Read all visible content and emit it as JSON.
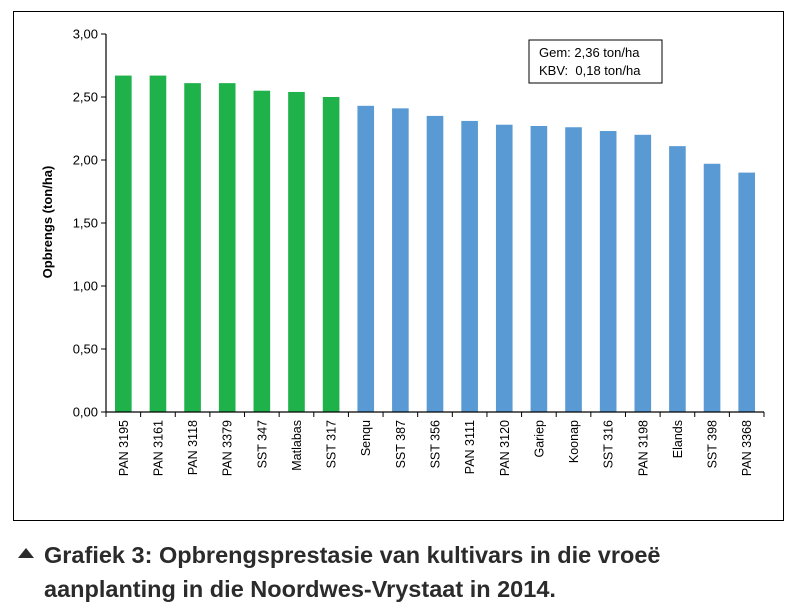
{
  "caption": {
    "line1": "Grafiek 3: Opbrengsprestasie van kultivars in die vroeë",
    "line2": "aanplanting in die Noordwes-Vrystaat in 2014."
  },
  "stats_box": {
    "line1": "Gem: 2,36 ton/ha",
    "line2": "KBV:  0,18 ton/ha"
  },
  "colors": {
    "highlight_bar": "#1fb24a",
    "regular_bar": "#5a9ad4",
    "axis": "#000000"
  },
  "chart_data": {
    "type": "bar",
    "ylabel": "Opbrengs (ton/ha)",
    "xlabel": "",
    "ylim": [
      0,
      3.0
    ],
    "yticks": [
      "0,00",
      "0,50",
      "1,00",
      "1,50",
      "2,00",
      "2,50",
      "3,00"
    ],
    "grid": false,
    "categories": [
      "PAN 3195",
      "PAN 3161",
      "PAN 3118",
      "PAN 3379",
      "SST 347",
      "Matlabas",
      "SST 317",
      "Senqu",
      "SST 387",
      "SST 356",
      "PAN 3111",
      "PAN 3120",
      "Gariep",
      "Koonap",
      "SST 316",
      "PAN 3198",
      "Elands",
      "SST 398",
      "PAN 3368"
    ],
    "values": [
      2.67,
      2.67,
      2.61,
      2.61,
      2.55,
      2.54,
      2.5,
      2.43,
      2.41,
      2.35,
      2.31,
      2.28,
      2.27,
      2.26,
      2.23,
      2.2,
      2.11,
      1.97,
      1.9
    ],
    "highlighted": [
      true,
      true,
      true,
      true,
      true,
      true,
      true,
      false,
      false,
      false,
      false,
      false,
      false,
      false,
      false,
      false,
      false,
      false,
      false
    ]
  }
}
